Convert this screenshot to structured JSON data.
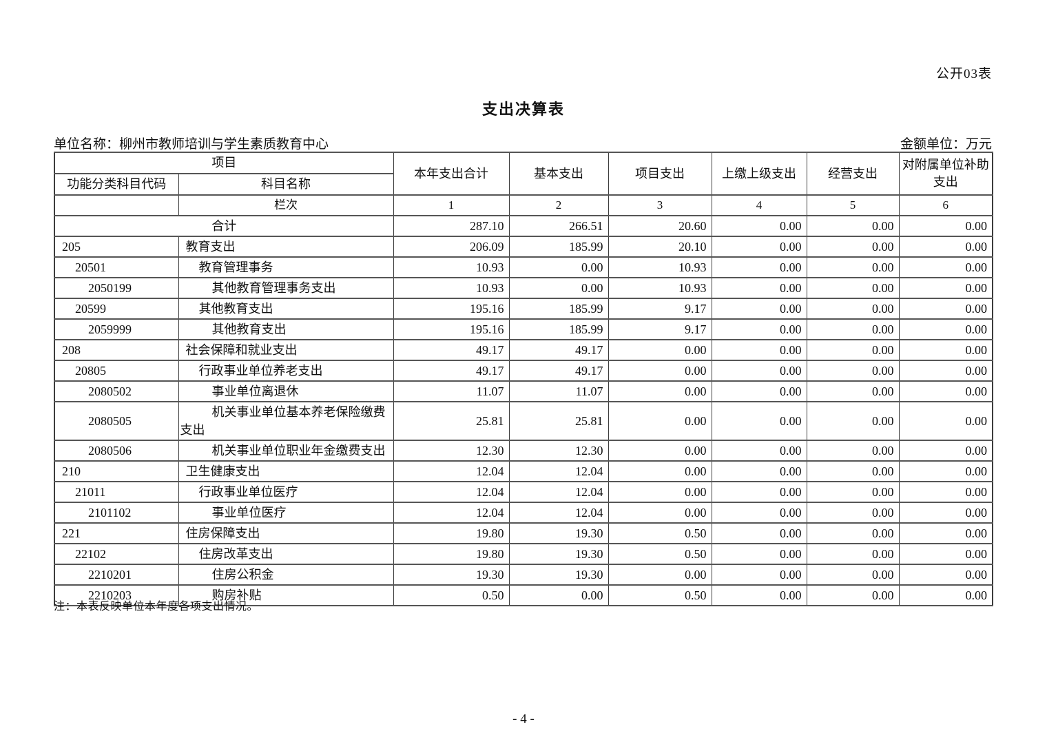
{
  "page": {
    "form_code": "公开03表",
    "title": "支出决算表",
    "unit_name_line": "单位名称：柳州市教师培训与学生素质教育中心",
    "amount_unit_line": "金额单位：万元",
    "footnote": "注：本表反映单位本年度各项支出情况。",
    "page_number": "- 4 -"
  },
  "table": {
    "header": {
      "project_group": "项目",
      "code_col": "功能分类科目代码",
      "name_col": "科目名称",
      "value_cols": [
        "本年支出合计",
        "基本支出",
        "项目支出",
        "上缴上级支出",
        "经营支出",
        "对附属单位补助支出"
      ],
      "lanci_label": "栏次",
      "col_numbers": [
        "1",
        "2",
        "3",
        "4",
        "5",
        "6"
      ]
    },
    "rows": [
      {
        "code": "",
        "name": "合计",
        "level": 0,
        "merged": true,
        "values": [
          "287.10",
          "266.51",
          "20.60",
          "0.00",
          "0.00",
          "0.00"
        ]
      },
      {
        "code": "205",
        "name": "教育支出",
        "level": 1,
        "values": [
          "206.09",
          "185.99",
          "20.10",
          "0.00",
          "0.00",
          "0.00"
        ]
      },
      {
        "code": "20501",
        "name": "教育管理事务",
        "level": 2,
        "values": [
          "10.93",
          "0.00",
          "10.93",
          "0.00",
          "0.00",
          "0.00"
        ]
      },
      {
        "code": "2050199",
        "name": "其他教育管理事务支出",
        "level": 3,
        "values": [
          "10.93",
          "0.00",
          "10.93",
          "0.00",
          "0.00",
          "0.00"
        ]
      },
      {
        "code": "20599",
        "name": "其他教育支出",
        "level": 2,
        "values": [
          "195.16",
          "185.99",
          "9.17",
          "0.00",
          "0.00",
          "0.00"
        ]
      },
      {
        "code": "2059999",
        "name": "其他教育支出",
        "level": 3,
        "values": [
          "195.16",
          "185.99",
          "9.17",
          "0.00",
          "0.00",
          "0.00"
        ]
      },
      {
        "code": "208",
        "name": "社会保障和就业支出",
        "level": 1,
        "values": [
          "49.17",
          "49.17",
          "0.00",
          "0.00",
          "0.00",
          "0.00"
        ]
      },
      {
        "code": "20805",
        "name": "行政事业单位养老支出",
        "level": 2,
        "values": [
          "49.17",
          "49.17",
          "0.00",
          "0.00",
          "0.00",
          "0.00"
        ]
      },
      {
        "code": "2080502",
        "name": "事业单位离退休",
        "level": 3,
        "values": [
          "11.07",
          "11.07",
          "0.00",
          "0.00",
          "0.00",
          "0.00"
        ]
      },
      {
        "code": "2080505",
        "name": "机关事业单位基本养老保险缴费支出",
        "level": 3,
        "values": [
          "25.81",
          "25.81",
          "0.00",
          "0.00",
          "0.00",
          "0.00"
        ]
      },
      {
        "code": "2080506",
        "name": "机关事业单位职业年金缴费支出",
        "level": 3,
        "values": [
          "12.30",
          "12.30",
          "0.00",
          "0.00",
          "0.00",
          "0.00"
        ]
      },
      {
        "code": "210",
        "name": "卫生健康支出",
        "level": 1,
        "values": [
          "12.04",
          "12.04",
          "0.00",
          "0.00",
          "0.00",
          "0.00"
        ]
      },
      {
        "code": "21011",
        "name": "行政事业单位医疗",
        "level": 2,
        "values": [
          "12.04",
          "12.04",
          "0.00",
          "0.00",
          "0.00",
          "0.00"
        ]
      },
      {
        "code": "2101102",
        "name": "事业单位医疗",
        "level": 3,
        "values": [
          "12.04",
          "12.04",
          "0.00",
          "0.00",
          "0.00",
          "0.00"
        ]
      },
      {
        "code": "221",
        "name": "住房保障支出",
        "level": 1,
        "values": [
          "19.80",
          "19.30",
          "0.50",
          "0.00",
          "0.00",
          "0.00"
        ]
      },
      {
        "code": "22102",
        "name": "住房改革支出",
        "level": 2,
        "values": [
          "19.80",
          "19.30",
          "0.50",
          "0.00",
          "0.00",
          "0.00"
        ]
      },
      {
        "code": "2210201",
        "name": "住房公积金",
        "level": 3,
        "values": [
          "19.30",
          "19.30",
          "0.00",
          "0.00",
          "0.00",
          "0.00"
        ]
      },
      {
        "code": "2210203",
        "name": "购房补贴",
        "level": 3,
        "values": [
          "0.50",
          "0.00",
          "0.50",
          "0.00",
          "0.00",
          "0.00"
        ]
      }
    ]
  }
}
